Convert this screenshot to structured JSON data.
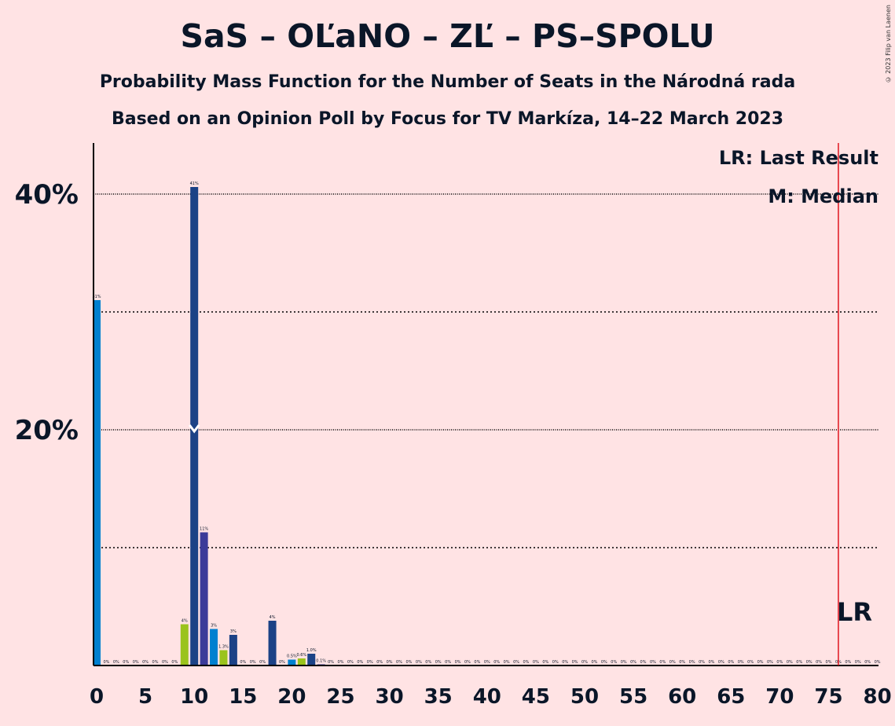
{
  "title": "SaS – OĽaNO – ZĽ – PS–SPOLU",
  "subtitle1": "Probability Mass Function for the Number of Seats in the Národná rada",
  "subtitle2": "Based on an Opinion Poll by Focus for TV Markíza, 14–22 March 2023",
  "copyright": "© 2023 Filip van Laenen",
  "legend": {
    "last_result": "LR: Last Result",
    "median": "M: Median"
  },
  "lr_marker": "LR",
  "median_marker": "M",
  "colors": {
    "background": "#ffe3e4",
    "sas": "#9ac31c",
    "olano": "#1b4286",
    "zl": "#3b3b99",
    "ps": "#0080d0",
    "last_result_line": "#e0141e",
    "axis": "#000000"
  },
  "chart_data": {
    "type": "bar",
    "xlabel": "",
    "ylabel": "",
    "xlim": [
      0,
      80
    ],
    "ylim": [
      0,
      44.3
    ],
    "x_ticks": [
      0,
      5,
      10,
      15,
      20,
      25,
      30,
      35,
      40,
      45,
      50,
      55,
      60,
      65,
      70,
      75,
      80
    ],
    "y_ticks": [
      {
        "value": 20,
        "label": "20%"
      },
      {
        "value": 40,
        "label": "40%"
      }
    ],
    "minor_gridlines": [
      10,
      30
    ],
    "last_result": 76,
    "median": 10,
    "bars": [
      {
        "x": 0,
        "value": 31,
        "label": "31%",
        "color": "ps"
      },
      {
        "x": 1,
        "value": 0,
        "label": "0%",
        "color": "ps"
      },
      {
        "x": 2,
        "value": 0,
        "label": "0%",
        "color": "ps"
      },
      {
        "x": 3,
        "value": 0,
        "label": "0%",
        "color": "ps"
      },
      {
        "x": 4,
        "value": 0,
        "label": "0%",
        "color": "ps"
      },
      {
        "x": 5,
        "value": 0,
        "label": "0%",
        "color": "ps"
      },
      {
        "x": 6,
        "value": 0,
        "label": "0%",
        "color": "ps"
      },
      {
        "x": 7,
        "value": 0,
        "label": "0%",
        "color": "ps"
      },
      {
        "x": 8,
        "value": 0,
        "label": "0%",
        "color": "ps"
      },
      {
        "x": 9,
        "value": 3.5,
        "label": "4%",
        "color": "sas"
      },
      {
        "x": 10,
        "value": 40.6,
        "label": "41%",
        "color": "olano"
      },
      {
        "x": 11,
        "value": 11.3,
        "label": "11%",
        "color": "zl"
      },
      {
        "x": 12,
        "value": 3.1,
        "label": "3%",
        "color": "ps"
      },
      {
        "x": 13,
        "value": 1.3,
        "label": "1.3%",
        "color": "sas"
      },
      {
        "x": 14,
        "value": 2.6,
        "label": "3%",
        "color": "olano"
      },
      {
        "x": 15,
        "value": 0,
        "label": "0%",
        "color": "zl"
      },
      {
        "x": 16,
        "value": 0,
        "label": "0%",
        "color": "ps"
      },
      {
        "x": 17,
        "value": 0,
        "label": "0%",
        "color": "sas"
      },
      {
        "x": 18,
        "value": 3.8,
        "label": "4%",
        "color": "olano"
      },
      {
        "x": 19,
        "value": 0,
        "label": "0%",
        "color": "zl"
      },
      {
        "x": 20,
        "value": 0.5,
        "label": "0.5%",
        "color": "ps"
      },
      {
        "x": 21,
        "value": 0.6,
        "label": "0.6%",
        "color": "sas"
      },
      {
        "x": 22,
        "value": 1.0,
        "label": "1.0%",
        "color": "olano"
      },
      {
        "x": 23,
        "value": 0.1,
        "label": "0.1%",
        "color": "zl"
      },
      {
        "x": 24,
        "value": 0,
        "label": "0%",
        "color": "ps"
      },
      {
        "x": 25,
        "value": 0,
        "label": "0%",
        "color": "sas"
      },
      {
        "x": 26,
        "value": 0,
        "label": "0%",
        "color": "olano"
      },
      {
        "x": 27,
        "value": 0,
        "label": "0%",
        "color": "zl"
      },
      {
        "x": 28,
        "value": 0,
        "label": "0%",
        "color": "ps"
      },
      {
        "x": 29,
        "value": 0,
        "label": "0%",
        "color": "sas"
      },
      {
        "x": 30,
        "value": 0,
        "label": "0%",
        "color": "olano"
      },
      {
        "x": 31,
        "value": 0,
        "label": "0%",
        "color": "zl"
      },
      {
        "x": 32,
        "value": 0,
        "label": "0%",
        "color": "ps"
      },
      {
        "x": 33,
        "value": 0,
        "label": "0%",
        "color": "sas"
      },
      {
        "x": 34,
        "value": 0,
        "label": "0%",
        "color": "olano"
      },
      {
        "x": 35,
        "value": 0,
        "label": "0%",
        "color": "zl"
      },
      {
        "x": 36,
        "value": 0,
        "label": "0%",
        "color": "ps"
      },
      {
        "x": 37,
        "value": 0,
        "label": "0%",
        "color": "sas"
      },
      {
        "x": 38,
        "value": 0,
        "label": "0%",
        "color": "olano"
      },
      {
        "x": 39,
        "value": 0,
        "label": "0%",
        "color": "zl"
      },
      {
        "x": 40,
        "value": 0,
        "label": "0%",
        "color": "ps"
      },
      {
        "x": 41,
        "value": 0,
        "label": "0%",
        "color": "sas"
      },
      {
        "x": 42,
        "value": 0,
        "label": "0%",
        "color": "olano"
      },
      {
        "x": 43,
        "value": 0,
        "label": "0%",
        "color": "zl"
      },
      {
        "x": 44,
        "value": 0,
        "label": "0%",
        "color": "ps"
      },
      {
        "x": 45,
        "value": 0,
        "label": "0%",
        "color": "sas"
      },
      {
        "x": 46,
        "value": 0,
        "label": "0%",
        "color": "olano"
      },
      {
        "x": 47,
        "value": 0,
        "label": "0%",
        "color": "zl"
      },
      {
        "x": 48,
        "value": 0,
        "label": "0%",
        "color": "ps"
      },
      {
        "x": 49,
        "value": 0,
        "label": "0%",
        "color": "sas"
      },
      {
        "x": 50,
        "value": 0,
        "label": "0%",
        "color": "olano"
      },
      {
        "x": 51,
        "value": 0,
        "label": "0%",
        "color": "zl"
      },
      {
        "x": 52,
        "value": 0,
        "label": "0%",
        "color": "ps"
      },
      {
        "x": 53,
        "value": 0,
        "label": "0%",
        "color": "sas"
      },
      {
        "x": 54,
        "value": 0,
        "label": "0%",
        "color": "olano"
      },
      {
        "x": 55,
        "value": 0,
        "label": "0%",
        "color": "zl"
      },
      {
        "x": 56,
        "value": 0,
        "label": "0%",
        "color": "ps"
      },
      {
        "x": 57,
        "value": 0,
        "label": "0%",
        "color": "sas"
      },
      {
        "x": 58,
        "value": 0,
        "label": "0%",
        "color": "olano"
      },
      {
        "x": 59,
        "value": 0,
        "label": "0%",
        "color": "zl"
      },
      {
        "x": 60,
        "value": 0,
        "label": "0%",
        "color": "ps"
      },
      {
        "x": 61,
        "value": 0,
        "label": "0%",
        "color": "sas"
      },
      {
        "x": 62,
        "value": 0,
        "label": "0%",
        "color": "olano"
      },
      {
        "x": 63,
        "value": 0,
        "label": "0%",
        "color": "zl"
      },
      {
        "x": 64,
        "value": 0,
        "label": "0%",
        "color": "ps"
      },
      {
        "x": 65,
        "value": 0,
        "label": "0%",
        "color": "sas"
      },
      {
        "x": 66,
        "value": 0,
        "label": "0%",
        "color": "olano"
      },
      {
        "x": 67,
        "value": 0,
        "label": "0%",
        "color": "zl"
      },
      {
        "x": 68,
        "value": 0,
        "label": "0%",
        "color": "ps"
      },
      {
        "x": 69,
        "value": 0,
        "label": "0%",
        "color": "sas"
      },
      {
        "x": 70,
        "value": 0,
        "label": "0%",
        "color": "olano"
      },
      {
        "x": 71,
        "value": 0,
        "label": "0%",
        "color": "zl"
      },
      {
        "x": 72,
        "value": 0,
        "label": "0%",
        "color": "ps"
      },
      {
        "x": 73,
        "value": 0,
        "label": "0%",
        "color": "sas"
      },
      {
        "x": 74,
        "value": 0,
        "label": "0%",
        "color": "olano"
      },
      {
        "x": 75,
        "value": 0,
        "label": "0%",
        "color": "zl"
      },
      {
        "x": 76,
        "value": 0,
        "label": "0%",
        "color": "ps"
      },
      {
        "x": 77,
        "value": 0,
        "label": "0%",
        "color": "sas"
      },
      {
        "x": 78,
        "value": 0,
        "label": "0%",
        "color": "olano"
      },
      {
        "x": 79,
        "value": 0,
        "label": "0%",
        "color": "zl"
      },
      {
        "x": 80,
        "value": 0,
        "label": "0%",
        "color": "ps"
      }
    ]
  }
}
